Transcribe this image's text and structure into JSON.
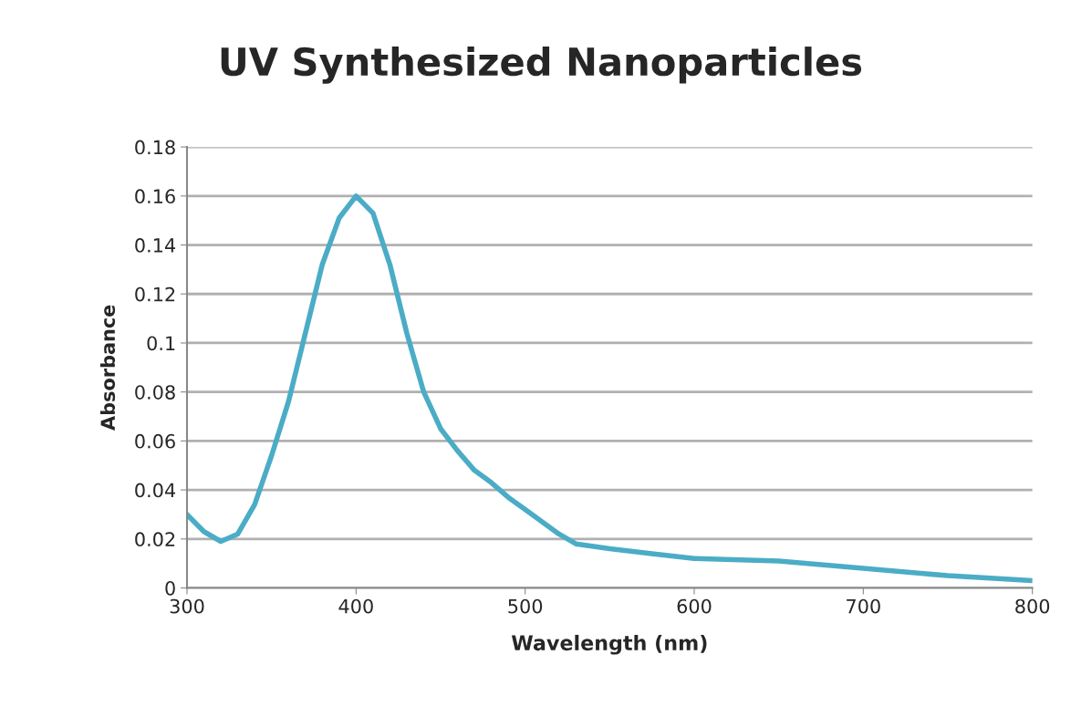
{
  "chart_data": {
    "type": "line",
    "title": "UV Synthesized Nanoparticles",
    "xlabel": "Wavelength (nm)",
    "ylabel": "Absorbance",
    "x": [
      300,
      310,
      320,
      330,
      340,
      350,
      360,
      370,
      380,
      390,
      400,
      410,
      420,
      430,
      440,
      450,
      460,
      470,
      480,
      490,
      500,
      510,
      520,
      530,
      550,
      575,
      600,
      650,
      700,
      750,
      800
    ],
    "series": [
      {
        "color": "#4bacc6",
        "values": [
          0.03,
          0.023,
          0.019,
          0.022,
          0.034,
          0.054,
          0.076,
          0.104,
          0.132,
          0.151,
          0.16,
          0.153,
          0.132,
          0.104,
          0.08,
          0.065,
          0.056,
          0.048,
          0.043,
          0.037,
          0.032,
          0.027,
          0.022,
          0.018,
          0.016,
          0.014,
          0.012,
          0.011,
          0.008,
          0.005,
          0.003
        ]
      }
    ],
    "xlim": [
      300,
      800
    ],
    "xticks": [
      300,
      400,
      500,
      600,
      700,
      800
    ],
    "ylim": [
      0,
      0.18
    ],
    "yticks": [
      0,
      0.02,
      0.04,
      0.06,
      0.08,
      0.1,
      0.12,
      0.14,
      0.16,
      0.18
    ],
    "grid": "y",
    "legend": false,
    "marker": "none",
    "line_style": "solid"
  }
}
